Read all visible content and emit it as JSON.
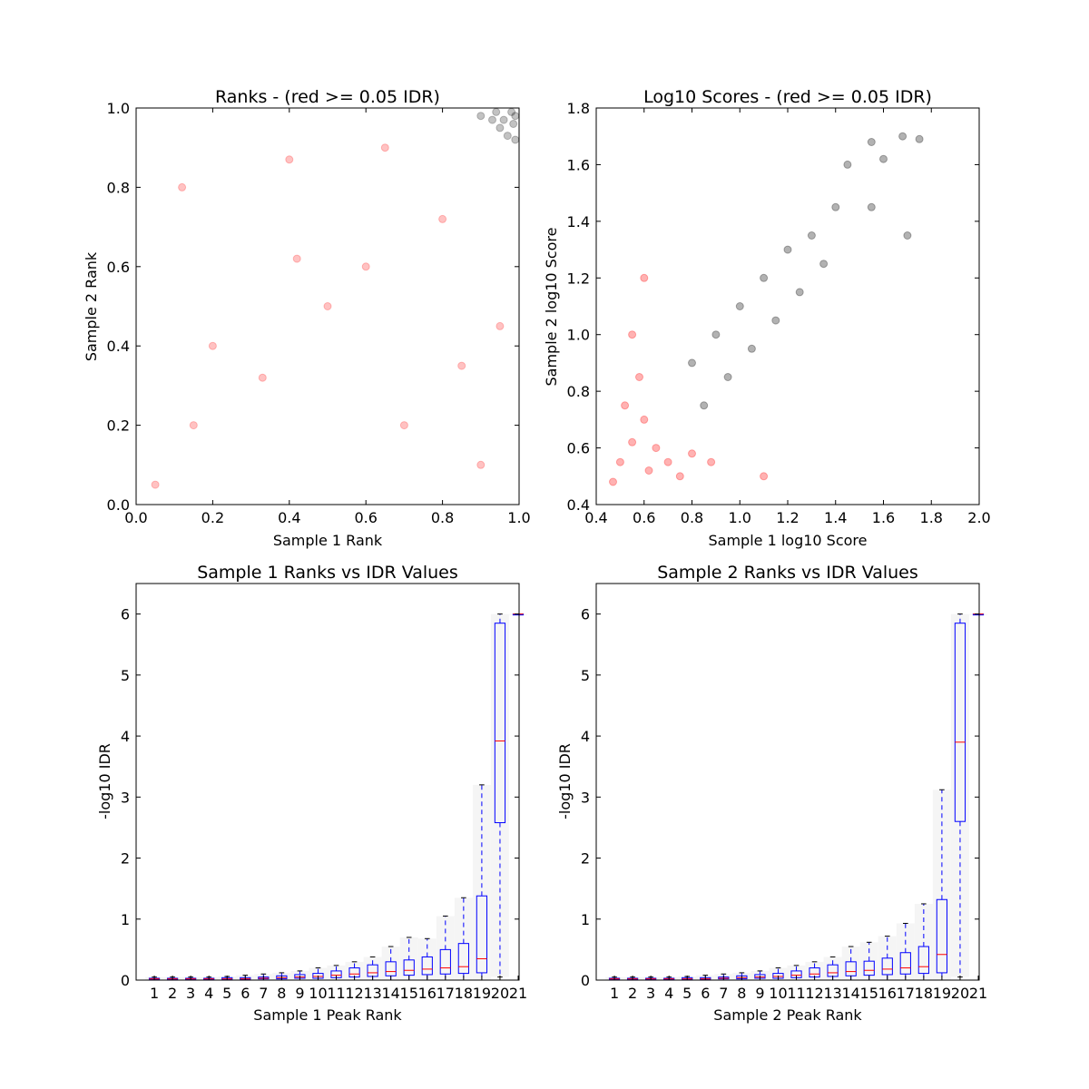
{
  "chart_data": [
    {
      "type": "scatter",
      "title": "Ranks - (red >= 0.05 IDR)",
      "xlabel": "Sample 1 Rank",
      "ylabel": "Sample 2 Rank",
      "xlim": [
        0.0,
        1.0
      ],
      "ylim": [
        0.0,
        1.0
      ],
      "xticks": [
        "0.0",
        "0.2",
        "0.4",
        "0.6",
        "0.8",
        "1.0"
      ],
      "yticks": [
        "0.0",
        "0.2",
        "0.4",
        "0.6",
        "0.8",
        "1.0"
      ],
      "series": [
        {
          "color": "#ff0000",
          "alpha": 0.08,
          "points": [
            [
              0.05,
              0.05
            ],
            [
              0.12,
              0.8
            ],
            [
              0.2,
              0.4
            ],
            [
              0.33,
              0.32
            ],
            [
              0.4,
              0.87
            ],
            [
              0.5,
              0.5
            ],
            [
              0.6,
              0.6
            ],
            [
              0.7,
              0.2
            ],
            [
              0.8,
              0.72
            ],
            [
              0.9,
              0.1
            ],
            [
              0.95,
              0.45
            ],
            [
              0.15,
              0.2
            ],
            [
              0.42,
              0.62
            ],
            [
              0.65,
              0.9
            ],
            [
              0.85,
              0.35
            ]
          ]
        },
        {
          "color": "#000000",
          "alpha": 0.08,
          "points": [
            [
              0.96,
              0.97
            ],
            [
              0.98,
              0.99
            ],
            [
              0.93,
              0.97
            ],
            [
              0.97,
              0.93
            ],
            [
              0.99,
              0.98
            ],
            [
              0.9,
              0.98
            ],
            [
              0.95,
              0.95
            ],
            [
              0.985,
              0.96
            ],
            [
              0.94,
              0.99
            ],
            [
              0.99,
              0.92
            ]
          ]
        }
      ]
    },
    {
      "type": "scatter",
      "title": "Log10 Scores - (red >= 0.05 IDR)",
      "xlabel": "Sample 1 log10 Score",
      "ylabel": "Sample 2 log10 Score",
      "xlim": [
        0.4,
        2.0
      ],
      "ylim": [
        0.4,
        1.8
      ],
      "xticks": [
        "0.4",
        "0.6",
        "0.8",
        "1.0",
        "1.2",
        "1.4",
        "1.6",
        "1.8",
        "2.0"
      ],
      "yticks": [
        "0.4",
        "0.6",
        "0.8",
        "1.0",
        "1.2",
        "1.4",
        "1.6",
        "1.8"
      ],
      "series": [
        {
          "color": "#ff0000",
          "alpha": 0.1,
          "points": [
            [
              0.47,
              0.48
            ],
            [
              0.5,
              0.55
            ],
            [
              0.55,
              0.62
            ],
            [
              0.6,
              0.7
            ],
            [
              0.62,
              0.52
            ],
            [
              0.65,
              0.6
            ],
            [
              0.7,
              0.55
            ],
            [
              0.75,
              0.5
            ],
            [
              0.52,
              0.75
            ],
            [
              0.58,
              0.85
            ],
            [
              0.8,
              0.58
            ],
            [
              0.88,
              0.55
            ],
            [
              0.55,
              1.0
            ],
            [
              0.6,
              1.2
            ],
            [
              1.1,
              0.5
            ]
          ]
        },
        {
          "color": "#000000",
          "alpha": 0.1,
          "points": [
            [
              0.8,
              0.9
            ],
            [
              0.85,
              0.75
            ],
            [
              0.9,
              1.0
            ],
            [
              0.95,
              0.85
            ],
            [
              1.0,
              1.1
            ],
            [
              1.05,
              0.95
            ],
            [
              1.1,
              1.2
            ],
            [
              1.15,
              1.05
            ],
            [
              1.2,
              1.3
            ],
            [
              1.25,
              1.15
            ],
            [
              1.3,
              1.35
            ],
            [
              1.35,
              1.25
            ],
            [
              1.4,
              1.45
            ],
            [
              1.45,
              1.6
            ],
            [
              1.55,
              1.68
            ],
            [
              1.6,
              1.62
            ],
            [
              1.68,
              1.7
            ],
            [
              1.75,
              1.69
            ],
            [
              1.7,
              1.35
            ],
            [
              1.55,
              1.45
            ]
          ]
        }
      ]
    },
    {
      "type": "boxplot",
      "title": "Sample 1 Ranks vs IDR Values",
      "xlabel": "Sample 1 Peak Rank",
      "ylabel": "-log10 IDR",
      "ylim": [
        0,
        6.5
      ],
      "yticks": [
        "0",
        "1",
        "2",
        "3",
        "4",
        "5",
        "6"
      ],
      "categories": [
        "1",
        "2",
        "3",
        "4",
        "5",
        "6",
        "7",
        "8",
        "9",
        "10",
        "11",
        "12",
        "13",
        "14",
        "15",
        "16",
        "17",
        "18",
        "19",
        "20",
        "21"
      ],
      "boxes": [
        {
          "whislo": 0,
          "q1": 0.01,
          "med": 0.02,
          "q3": 0.03,
          "whishi": 0.05
        },
        {
          "whislo": 0,
          "q1": 0.01,
          "med": 0.02,
          "q3": 0.03,
          "whishi": 0.05
        },
        {
          "whislo": 0,
          "q1": 0.01,
          "med": 0.02,
          "q3": 0.03,
          "whishi": 0.05
        },
        {
          "whislo": 0,
          "q1": 0.01,
          "med": 0.02,
          "q3": 0.03,
          "whishi": 0.05
        },
        {
          "whislo": 0,
          "q1": 0.01,
          "med": 0.02,
          "q3": 0.04,
          "whishi": 0.06
        },
        {
          "whislo": 0,
          "q1": 0.01,
          "med": 0.02,
          "q3": 0.04,
          "whishi": 0.08
        },
        {
          "whislo": 0,
          "q1": 0.02,
          "med": 0.03,
          "q3": 0.05,
          "whishi": 0.1
        },
        {
          "whislo": 0,
          "q1": 0.02,
          "med": 0.04,
          "q3": 0.07,
          "whishi": 0.12
        },
        {
          "whislo": 0,
          "q1": 0.03,
          "med": 0.05,
          "q3": 0.09,
          "whishi": 0.15
        },
        {
          "whislo": 0,
          "q1": 0.03,
          "med": 0.06,
          "q3": 0.11,
          "whishi": 0.2
        },
        {
          "whislo": 0,
          "q1": 0.04,
          "med": 0.08,
          "q3": 0.15,
          "whishi": 0.24
        },
        {
          "whislo": 0,
          "q1": 0.05,
          "med": 0.1,
          "q3": 0.2,
          "whishi": 0.3
        },
        {
          "whislo": 0,
          "q1": 0.06,
          "med": 0.12,
          "q3": 0.25,
          "whishi": 0.38
        },
        {
          "whislo": 0,
          "q1": 0.07,
          "med": 0.14,
          "q3": 0.3,
          "whishi": 0.55
        },
        {
          "whislo": 0,
          "q1": 0.08,
          "med": 0.16,
          "q3": 0.33,
          "whishi": 0.7
        },
        {
          "whislo": 0,
          "q1": 0.09,
          "med": 0.18,
          "q3": 0.38,
          "whishi": 0.68
        },
        {
          "whislo": 0,
          "q1": 0.1,
          "med": 0.2,
          "q3": 0.5,
          "whishi": 1.05
        },
        {
          "whislo": 0,
          "q1": 0.11,
          "med": 0.22,
          "q3": 0.6,
          "whishi": 1.35
        },
        {
          "whislo": 0,
          "q1": 0.12,
          "med": 0.35,
          "q3": 1.38,
          "whishi": 3.2
        },
        {
          "whislo": 0.05,
          "q1": 2.58,
          "med": 3.92,
          "q3": 5.85,
          "whishi": 6.0
        },
        {
          "whislo": 6.0,
          "q1": 6.0,
          "med": 6.0,
          "q3": 6.0,
          "whishi": 6.0
        }
      ]
    },
    {
      "type": "boxplot",
      "title": "Sample 2 Ranks vs IDR Values",
      "xlabel": "Sample 2 Peak Rank",
      "ylabel": "-log10 IDR",
      "ylim": [
        0,
        6.5
      ],
      "yticks": [
        "0",
        "1",
        "2",
        "3",
        "4",
        "5",
        "6"
      ],
      "categories": [
        "1",
        "2",
        "3",
        "4",
        "5",
        "6",
        "7",
        "8",
        "9",
        "10",
        "11",
        "12",
        "13",
        "14",
        "15",
        "16",
        "17",
        "18",
        "19",
        "20",
        "21"
      ],
      "boxes": [
        {
          "whislo": 0,
          "q1": 0.01,
          "med": 0.02,
          "q3": 0.03,
          "whishi": 0.05
        },
        {
          "whislo": 0,
          "q1": 0.01,
          "med": 0.02,
          "q3": 0.03,
          "whishi": 0.05
        },
        {
          "whislo": 0,
          "q1": 0.01,
          "med": 0.02,
          "q3": 0.03,
          "whishi": 0.05
        },
        {
          "whislo": 0,
          "q1": 0.01,
          "med": 0.02,
          "q3": 0.03,
          "whishi": 0.05
        },
        {
          "whislo": 0,
          "q1": 0.01,
          "med": 0.02,
          "q3": 0.04,
          "whishi": 0.06
        },
        {
          "whislo": 0,
          "q1": 0.01,
          "med": 0.02,
          "q3": 0.04,
          "whishi": 0.08
        },
        {
          "whislo": 0,
          "q1": 0.02,
          "med": 0.03,
          "q3": 0.05,
          "whishi": 0.1
        },
        {
          "whislo": 0,
          "q1": 0.02,
          "med": 0.04,
          "q3": 0.07,
          "whishi": 0.12
        },
        {
          "whislo": 0,
          "q1": 0.03,
          "med": 0.05,
          "q3": 0.09,
          "whishi": 0.15
        },
        {
          "whislo": 0,
          "q1": 0.03,
          "med": 0.06,
          "q3": 0.11,
          "whishi": 0.2
        },
        {
          "whislo": 0,
          "q1": 0.04,
          "med": 0.08,
          "q3": 0.15,
          "whishi": 0.24
        },
        {
          "whislo": 0,
          "q1": 0.05,
          "med": 0.1,
          "q3": 0.2,
          "whishi": 0.3
        },
        {
          "whislo": 0,
          "q1": 0.06,
          "med": 0.12,
          "q3": 0.25,
          "whishi": 0.38
        },
        {
          "whislo": 0,
          "q1": 0.07,
          "med": 0.14,
          "q3": 0.3,
          "whishi": 0.55
        },
        {
          "whislo": 0,
          "q1": 0.08,
          "med": 0.16,
          "q3": 0.31,
          "whishi": 0.62
        },
        {
          "whislo": 0,
          "q1": 0.09,
          "med": 0.18,
          "q3": 0.36,
          "whishi": 0.72
        },
        {
          "whislo": 0,
          "q1": 0.1,
          "med": 0.2,
          "q3": 0.45,
          "whishi": 0.93
        },
        {
          "whislo": 0,
          "q1": 0.11,
          "med": 0.22,
          "q3": 0.55,
          "whishi": 1.25
        },
        {
          "whislo": 0,
          "q1": 0.12,
          "med": 0.42,
          "q3": 1.32,
          "whishi": 3.12
        },
        {
          "whislo": 0.05,
          "q1": 2.6,
          "med": 3.9,
          "q3": 5.85,
          "whishi": 6.0
        },
        {
          "whislo": 6.0,
          "q1": 6.0,
          "med": 6.0,
          "q3": 6.0,
          "whishi": 6.0
        }
      ]
    }
  ]
}
